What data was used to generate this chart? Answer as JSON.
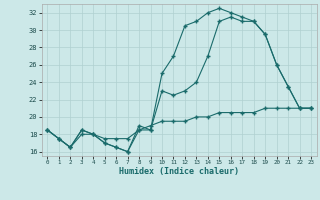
{
  "xlabel": "Humidex (Indice chaleur)",
  "bg_color": "#cce8e8",
  "grid_color": "#b0d0d0",
  "line_color": "#1a6b6b",
  "xlim": [
    -0.5,
    23.5
  ],
  "ylim": [
    15.5,
    33.0
  ],
  "xticks": [
    0,
    1,
    2,
    3,
    4,
    5,
    6,
    7,
    8,
    9,
    10,
    11,
    12,
    13,
    14,
    15,
    16,
    17,
    18,
    19,
    20,
    21,
    22,
    23
  ],
  "yticks": [
    16,
    18,
    20,
    22,
    24,
    26,
    28,
    30,
    32
  ],
  "series1_x": [
    0,
    1,
    2,
    3,
    4,
    5,
    6,
    7,
    8,
    9,
    10,
    11,
    12,
    13,
    14,
    15,
    16,
    17,
    18,
    19,
    20,
    21,
    22,
    23
  ],
  "series1_y": [
    18.5,
    17.5,
    16.5,
    18.5,
    18.0,
    17.0,
    16.5,
    16.0,
    18.5,
    18.5,
    25.0,
    27.0,
    30.5,
    31.0,
    32.0,
    32.5,
    32.0,
    31.5,
    31.0,
    29.5,
    26.0,
    23.5,
    21.0,
    21.0
  ],
  "series2_x": [
    0,
    1,
    2,
    3,
    4,
    5,
    6,
    7,
    8,
    9,
    10,
    11,
    12,
    13,
    14,
    15,
    16,
    17,
    18,
    19,
    20,
    21,
    22,
    23
  ],
  "series2_y": [
    18.5,
    17.5,
    16.5,
    18.5,
    18.0,
    17.0,
    16.5,
    16.0,
    19.0,
    18.5,
    23.0,
    22.5,
    23.0,
    24.0,
    27.0,
    31.0,
    31.5,
    31.0,
    31.0,
    29.5,
    26.0,
    23.5,
    21.0,
    21.0
  ],
  "series3_x": [
    0,
    1,
    2,
    3,
    4,
    5,
    6,
    7,
    8,
    9,
    10,
    11,
    12,
    13,
    14,
    15,
    16,
    17,
    18,
    19,
    20,
    21,
    22,
    23
  ],
  "series3_y": [
    18.5,
    17.5,
    16.5,
    18.0,
    18.0,
    17.5,
    17.5,
    17.5,
    18.5,
    19.0,
    19.5,
    19.5,
    19.5,
    20.0,
    20.0,
    20.5,
    20.5,
    20.5,
    20.5,
    21.0,
    21.0,
    21.0,
    21.0,
    21.0
  ]
}
